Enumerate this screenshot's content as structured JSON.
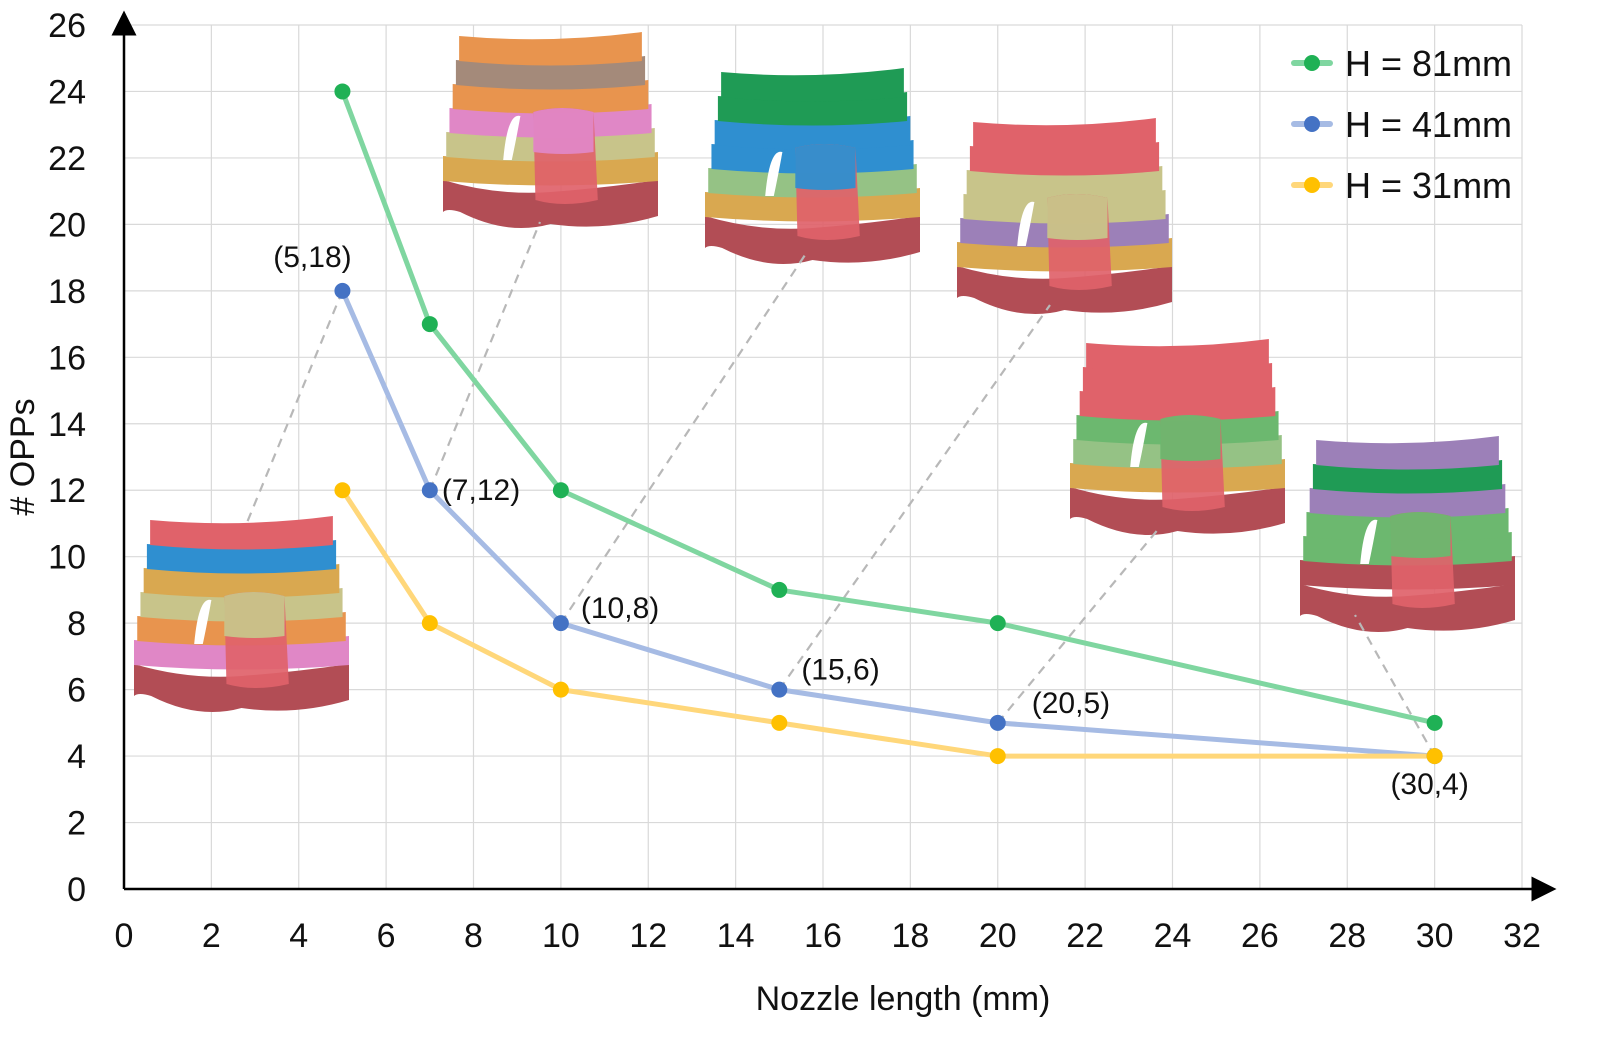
{
  "chart_data": {
    "type": "line",
    "title": "",
    "xlabel": "Nozzle length (mm)",
    "ylabel": "# OPPs",
    "xlim": [
      0,
      32
    ],
    "ylim": [
      0,
      26
    ],
    "xticks": [
      0,
      2,
      4,
      6,
      8,
      10,
      12,
      14,
      16,
      18,
      20,
      22,
      24,
      26,
      28,
      30,
      32
    ],
    "yticks": [
      0,
      2,
      4,
      6,
      8,
      10,
      12,
      14,
      16,
      18,
      20,
      22,
      24,
      26
    ],
    "grid": true,
    "legend_position": "top-right",
    "series": [
      {
        "name": "H = 81mm",
        "color": "#7fd6a0",
        "marker_color": "#1fb155",
        "x": [
          5,
          7,
          10,
          15,
          20,
          30
        ],
        "y": [
          24,
          17,
          12,
          9,
          8,
          5
        ]
      },
      {
        "name": "H = 41mm",
        "color": "#a6bbe4",
        "marker_color": "#4472c4",
        "x": [
          5,
          7,
          10,
          15,
          20,
          30
        ],
        "y": [
          18,
          12,
          8,
          6,
          5,
          4
        ]
      },
      {
        "name": "H = 31mm",
        "color": "#ffd77a",
        "marker_color": "#ffc000",
        "x": [
          5,
          7,
          10,
          15,
          20,
          30
        ],
        "y": [
          12,
          8,
          6,
          5,
          4,
          4
        ]
      }
    ],
    "annotations": [
      {
        "text": "(5,18)",
        "x": 5,
        "y": 18
      },
      {
        "text": "(7,12)",
        "x": 7,
        "y": 12
      },
      {
        "text": "(10,8)",
        "x": 10,
        "y": 8
      },
      {
        "text": "(15,6)",
        "x": 15,
        "y": 6
      },
      {
        "text": "(20,5)",
        "x": 20,
        "y": 5
      },
      {
        "text": "(30,4)",
        "x": 30,
        "y": 4
      }
    ],
    "model_colors": {
      "base": "#b24d55",
      "red": "#e0626a",
      "green": "#6cb86f",
      "dkgreen": "#1f9b55",
      "orange": "#e8944e",
      "yellow": "#e8d36a",
      "tan": "#d9a850",
      "purple": "#9c80b8",
      "blue": "#2f8fd0",
      "pink": "#e087c6",
      "khaki": "#c8c48a",
      "brown": "#a48a7a",
      "sage": "#95c285"
    }
  }
}
